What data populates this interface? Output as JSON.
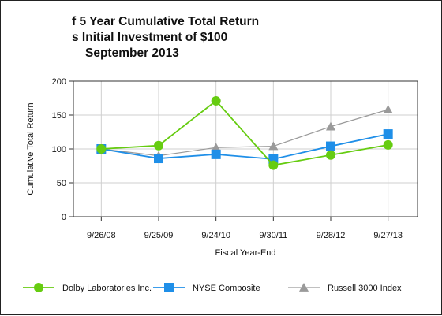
{
  "chart_data": {
    "type": "line",
    "title_lines": [
      "f 5 Year Cumulative Total Return",
      "s Initial Investment of $100",
      "September 2013"
    ],
    "xlabel": "Fiscal Year-End",
    "ylabel": "Cumulative Total Return",
    "categories": [
      "9/26/08",
      "9/25/09",
      "9/24/10",
      "9/30/11",
      "9/28/12",
      "9/27/13"
    ],
    "ylim": [
      0,
      200
    ],
    "yticks": [
      0,
      50,
      100,
      150,
      200
    ],
    "grid": "horizontal",
    "legend_placement": "bottom",
    "series": [
      {
        "name": "Dolby Laboratories Inc.",
        "marker": "circle",
        "color": "#66cc11",
        "values": [
          100,
          105,
          171,
          76,
          91,
          106
        ]
      },
      {
        "name": "NYSE Composite",
        "marker": "square",
        "color": "#1f8fe8",
        "values": [
          100,
          86,
          92,
          85,
          104,
          122
        ]
      },
      {
        "name": "Russell 3000 Index",
        "marker": "triangle",
        "color": "#9a9a9a",
        "values": [
          100,
          90,
          102,
          104,
          133,
          158
        ]
      }
    ]
  }
}
